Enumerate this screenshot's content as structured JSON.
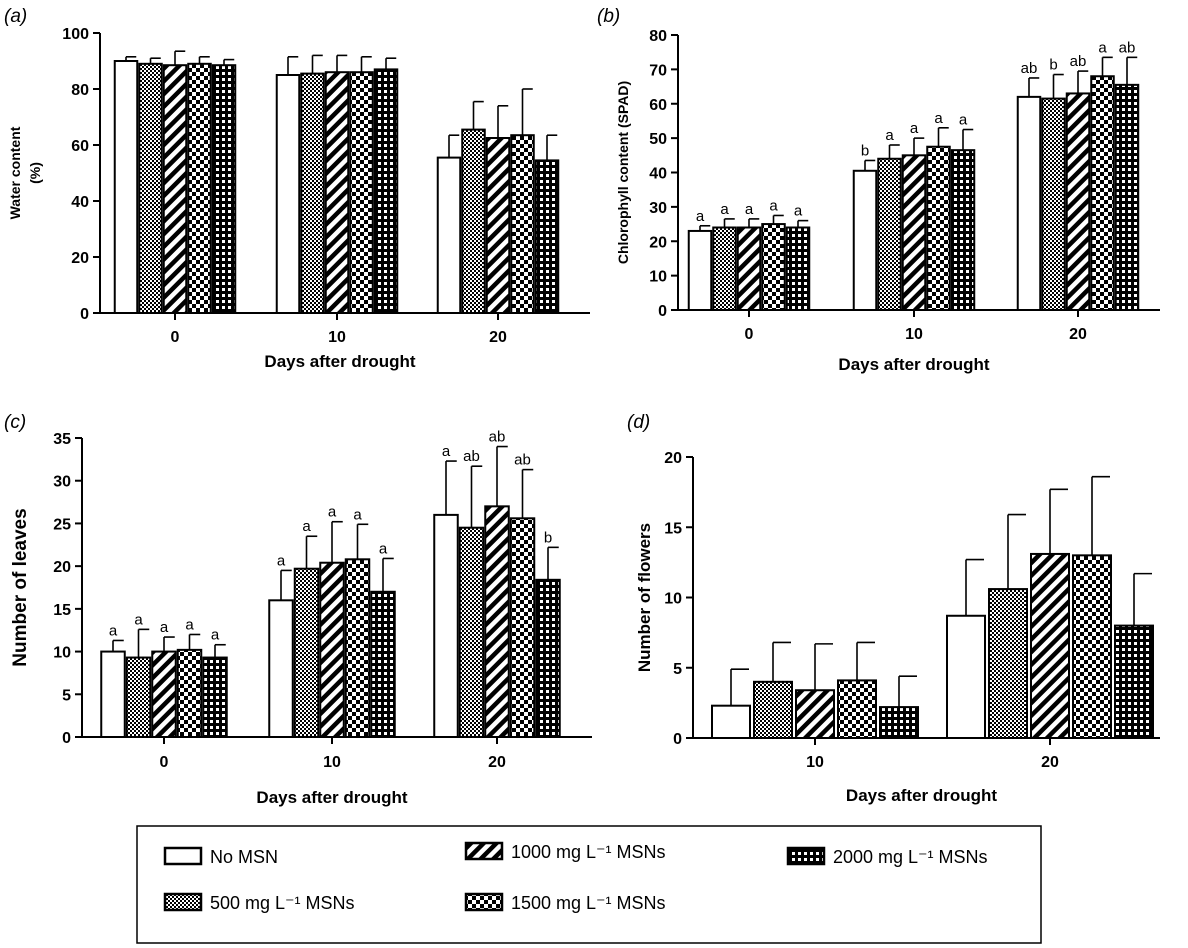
{
  "treatments": [
    {
      "name": "No MSN",
      "pattern": "none"
    },
    {
      "name": "500 mg L⁻¹ MSNs",
      "pattern": "fine-checker"
    },
    {
      "name": "1000 mg L⁻¹ MSNs",
      "pattern": "diagonal"
    },
    {
      "name": "1500 mg L⁻¹ MSNs",
      "pattern": "coarse-checker"
    },
    {
      "name": "2000 mg L⁻¹ MSNs",
      "pattern": "grid"
    }
  ],
  "colors": {
    "bar_fill": "#ffffff",
    "ink": "#000000",
    "background": "#ffffff"
  },
  "chart_data": [
    {
      "panel": "(a)",
      "type": "bar",
      "xlabel": "Days after drought",
      "ylabel": "Water content\n(%)",
      "categories": [
        "0",
        "10",
        "20"
      ],
      "ylim": [
        0,
        100
      ],
      "yticks": [
        0,
        20,
        40,
        60,
        80,
        100
      ],
      "series": [
        {
          "name": "No MSN",
          "values": [
            90,
            85,
            55.5
          ],
          "errors": [
            1.5,
            6.5,
            8
          ]
        },
        {
          "name": "500 mg L⁻¹ MSNs",
          "values": [
            89,
            85.5,
            65.5
          ],
          "errors": [
            2,
            6.5,
            10
          ]
        },
        {
          "name": "1000 mg L⁻¹ MSNs",
          "values": [
            88.5,
            86,
            62.5
          ],
          "errors": [
            5,
            6,
            11.5
          ]
        },
        {
          "name": "1500 mg L⁻¹ MSNs",
          "values": [
            89,
            86,
            63.5
          ],
          "errors": [
            2.5,
            5.5,
            16.5
          ]
        },
        {
          "name": "2000 mg L⁻¹ MSNs",
          "values": [
            88.5,
            87,
            54.5
          ],
          "errors": [
            2,
            4,
            9
          ]
        }
      ]
    },
    {
      "panel": "(b)",
      "type": "bar",
      "xlabel": "Days after drought",
      "ylabel": "Chlorophyll content (SPAD)",
      "categories": [
        "0",
        "10",
        "20"
      ],
      "ylim": [
        0,
        80
      ],
      "yticks": [
        0,
        10,
        20,
        30,
        40,
        50,
        60,
        70,
        80
      ],
      "series": [
        {
          "name": "No MSN",
          "values": [
            23,
            40.5,
            62
          ],
          "errors": [
            1.5,
            3,
            5.5
          ],
          "labels": [
            "a",
            "b",
            "ab"
          ]
        },
        {
          "name": "500 mg L⁻¹ MSNs",
          "values": [
            24,
            44,
            61.5
          ],
          "errors": [
            2.5,
            4,
            7
          ],
          "labels": [
            "a",
            "a",
            "b"
          ]
        },
        {
          "name": "1000 mg L⁻¹ MSNs",
          "values": [
            24,
            45,
            63
          ],
          "errors": [
            2.5,
            5,
            6.5
          ],
          "labels": [
            "a",
            "a",
            "ab"
          ]
        },
        {
          "name": "1500 mg L⁻¹ MSNs",
          "values": [
            25,
            47.5,
            68
          ],
          "errors": [
            2.5,
            5.5,
            5.5
          ],
          "labels": [
            "a",
            "a",
            "a"
          ]
        },
        {
          "name": "2000 mg L⁻¹ MSNs",
          "values": [
            24,
            46.5,
            65.5
          ],
          "errors": [
            2,
            6,
            8
          ],
          "labels": [
            "a",
            "a",
            "ab"
          ]
        }
      ]
    },
    {
      "panel": "(c)",
      "type": "bar",
      "xlabel": "Days after drought",
      "ylabel": "Number of leaves",
      "categories": [
        "0",
        "10",
        "20"
      ],
      "ylim": [
        0,
        35
      ],
      "yticks": [
        0,
        5,
        10,
        15,
        20,
        25,
        30,
        35
      ],
      "series": [
        {
          "name": "No MSN",
          "values": [
            10,
            16,
            26
          ],
          "errors": [
            1.3,
            3.5,
            6.3
          ],
          "labels": [
            "a",
            "a",
            "a"
          ]
        },
        {
          "name": "500 mg L⁻¹ MSNs",
          "values": [
            9.3,
            19.7,
            24.5
          ],
          "errors": [
            3.3,
            3.8,
            7.2
          ],
          "labels": [
            "a",
            "a",
            "ab"
          ]
        },
        {
          "name": "1000 mg L⁻¹ MSNs",
          "values": [
            10,
            20.4,
            27
          ],
          "errors": [
            1.7,
            4.8,
            7
          ],
          "labels": [
            "a",
            "a",
            "ab"
          ]
        },
        {
          "name": "1500 mg L⁻¹ MSNs",
          "values": [
            10.2,
            20.8,
            25.6
          ],
          "errors": [
            1.8,
            4.1,
            5.7
          ],
          "labels": [
            "a",
            "a",
            "ab"
          ]
        },
        {
          "name": "2000 mg L⁻¹ MSNs",
          "values": [
            9.3,
            17,
            18.4
          ],
          "errors": [
            1.5,
            3.9,
            3.8
          ],
          "labels": [
            "a",
            "a",
            "b"
          ]
        }
      ]
    },
    {
      "panel": "(d)",
      "type": "bar",
      "xlabel": "Days after drought",
      "ylabel": "Number of flowers",
      "categories": [
        "10",
        "20"
      ],
      "ylim": [
        0,
        20
      ],
      "yticks": [
        0,
        5,
        10,
        15,
        20
      ],
      "series": [
        {
          "name": "No MSN",
          "values": [
            2.3,
            8.7
          ],
          "errors": [
            2.6,
            4
          ]
        },
        {
          "name": "500 mg L⁻¹ MSNs",
          "values": [
            4,
            10.6
          ],
          "errors": [
            2.8,
            5.3
          ]
        },
        {
          "name": "1000 mg L⁻¹ MSNs",
          "values": [
            3.4,
            13.1
          ],
          "errors": [
            3.3,
            4.6
          ]
        },
        {
          "name": "1500 mg L⁻¹ MSNs",
          "values": [
            4.1,
            13
          ],
          "errors": [
            2.7,
            5.6
          ]
        },
        {
          "name": "2000 mg L⁻¹ MSNs",
          "values": [
            2.2,
            8
          ],
          "errors": [
            2.2,
            3.7
          ]
        }
      ]
    }
  ]
}
